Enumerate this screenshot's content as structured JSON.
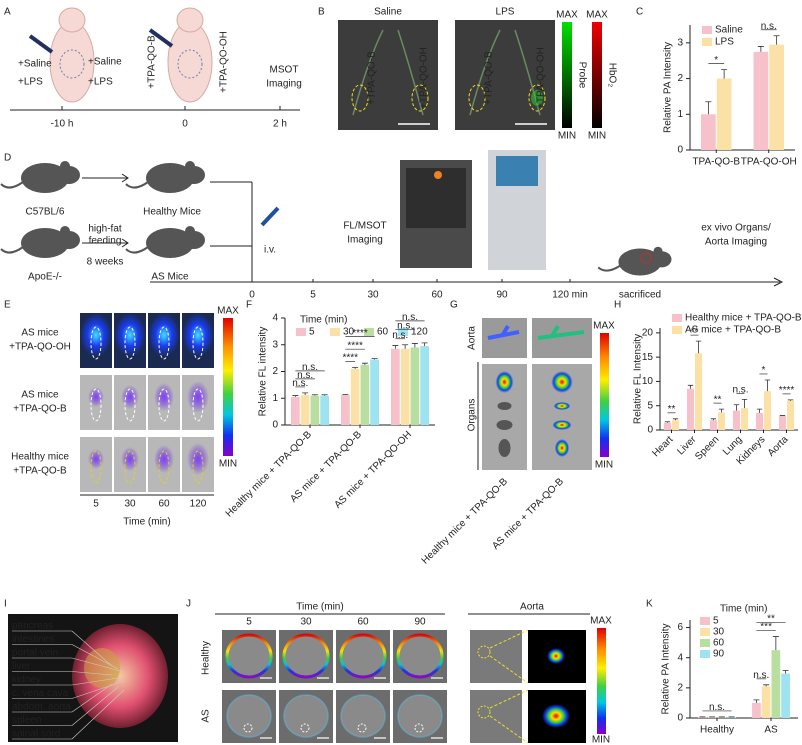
{
  "panel_labels": [
    "A",
    "B",
    "C",
    "D",
    "E",
    "F",
    "G",
    "H",
    "I",
    "J",
    "K"
  ],
  "panel_a": {
    "left_labels": [
      "+Saline",
      "+LPS",
      "+Saline",
      "+LPS"
    ],
    "probe_labels": [
      "+TPA-QO-B",
      "+TPA-QO-OH"
    ],
    "imaging": [
      "MSOT",
      "Imaging"
    ],
    "timeline": [
      "-10 h",
      "0",
      "2 h"
    ]
  },
  "panel_b": {
    "columns": [
      "Saline",
      "LPS"
    ],
    "probe_labels": [
      "+TPA-QO-B",
      "+TPA-QO-OH",
      "+TPA-QO-B",
      "+TPA-QO-OH"
    ],
    "colorbars": [
      {
        "max": "MAX",
        "min": "MIN",
        "label": "Probe"
      },
      {
        "max": "MAX",
        "min": "MIN",
        "label": "HbO₂"
      }
    ]
  },
  "panel_d": {
    "strains": [
      "C57BL/6",
      "ApoE-/-"
    ],
    "groups": [
      "Healthy Mice",
      "AS Mice"
    ],
    "diet": [
      "high-fat",
      "feeding",
      "8 weeks"
    ],
    "injection": "i.v.",
    "imaging": [
      "FL/MSOT",
      "Imaging"
    ],
    "timeline": [
      "0",
      "5",
      "30",
      "60",
      "90",
      "120 min",
      "sacrificed"
    ],
    "ex_vivo": [
      "ex vivo Organs/",
      "Aorta Imaging"
    ]
  },
  "panel_e": {
    "rows": [
      [
        "AS mice",
        "+TPA-QO-OH"
      ],
      [
        "AS mice",
        "+TPA-QO-B"
      ],
      [
        "Healthy mice",
        "+TPA-QO-B"
      ]
    ],
    "times": [
      "5",
      "30",
      "60",
      "120"
    ],
    "x_label": "Time (min)",
    "colorbar": {
      "max": "MAX",
      "min": "MIN"
    }
  },
  "panel_g": {
    "rows": [
      "Aorta",
      "Organs"
    ],
    "groups": [
      "Healthy mice + TPA-QO-B",
      "AS mice + TPA-QO-B"
    ],
    "colorbar": {
      "max": "MAX",
      "min": "MIN"
    }
  },
  "panel_i": {
    "labels": [
      "pancreas",
      "intestines",
      "portal vein",
      "liver",
      "kidney",
      "c. vena cava",
      "abdom. aorta",
      "spleen",
      "spinal sord"
    ]
  },
  "panel_j": {
    "time_label": "Time (min)",
    "times": [
      "5",
      "30",
      "60",
      "90"
    ],
    "rows": [
      "Healthy",
      "AS"
    ],
    "aorta_label": "Aorta",
    "colorbar": {
      "max": "MAX",
      "min": "MIN"
    }
  },
  "chart_data": [
    {
      "type": "bar",
      "y_label": "Relative PA Intensity",
      "categories": [
        "TPA-QO-B",
        "TPA-QO-OH"
      ],
      "series": [
        {
          "name": "Saline",
          "color": "#f7c1cb",
          "values": [
            1.0,
            2.75
          ],
          "errors": [
            0.35,
            0.15
          ]
        },
        {
          "name": "LPS",
          "color": "#fbe1a6",
          "values": [
            2.0,
            2.95
          ],
          "errors": [
            0.25,
            0.25
          ]
        }
      ],
      "ylim": [
        0,
        3.5
      ],
      "yticks": [
        0,
        1,
        2,
        3
      ],
      "annotations": [
        "*",
        "n.s."
      ]
    },
    {
      "type": "bar",
      "y_label": "Relative FL intensity",
      "legend_title": "Time (min)",
      "categories": [
        "Healthy mice + TPA-QO-B",
        "AS mice + TPA-QO-B",
        "AS mice + TPA-QO-OH"
      ],
      "series": [
        {
          "name": "5",
          "color": "#f7c1cb",
          "values": [
            1.05,
            1.12,
            2.85
          ],
          "errors": [
            0.05,
            0.02,
            0.12
          ]
        },
        {
          "name": "30",
          "color": "#fbe1a6",
          "values": [
            1.12,
            2.1,
            2.85
          ],
          "errors": [
            0.08,
            0.05,
            0.15
          ]
        },
        {
          "name": "60",
          "color": "#b9dfa0",
          "values": [
            1.1,
            2.25,
            2.9
          ],
          "errors": [
            0.03,
            0.06,
            0.15
          ]
        },
        {
          "name": "120",
          "color": "#9ee3f2",
          "values": [
            1.1,
            2.45,
            2.95
          ],
          "errors": [
            0.03,
            0.03,
            0.12
          ]
        }
      ],
      "ylim": [
        0,
        4
      ],
      "yticks": [
        0,
        1,
        2,
        3,
        4
      ],
      "annotations": [
        "n.s.",
        "n.s.",
        "n.s.",
        "****",
        "****",
        "****",
        "n.s.",
        "n.s.",
        "n.s."
      ]
    },
    {
      "type": "bar",
      "y_label": "Relative FL Intensity",
      "categories": [
        "Heart",
        "Liver",
        "Speen",
        "Lung",
        "Kidneys",
        "Aorta"
      ],
      "series": [
        {
          "name": "Healthy mice + TPA-QO-B",
          "color": "#f7c1cb",
          "values": [
            1.5,
            8.5,
            2.0,
            4.0,
            3.5,
            2.9
          ],
          "errors": [
            0.2,
            0.7,
            0.3,
            1.2,
            0.8,
            0.1
          ]
        },
        {
          "name": "AS mice + TPA-QO-B",
          "color": "#fbe1a6",
          "values": [
            2.0,
            15.8,
            3.6,
            4.5,
            8.0,
            6.0
          ],
          "errors": [
            0.3,
            2.5,
            0.7,
            1.8,
            2.3,
            0.2
          ]
        }
      ],
      "ylim": [
        0,
        21
      ],
      "yticks": [
        0,
        5,
        10,
        15,
        20
      ],
      "annotations": [
        "**",
        "**",
        "**",
        "n.s.",
        "*",
        "****"
      ]
    },
    {
      "type": "bar",
      "y_label": "Relative PA Intensity",
      "legend_title": "Time (min)",
      "categories": [
        "Healthy",
        "AS"
      ],
      "series": [
        {
          "name": "5",
          "color": "#f7c1cb",
          "values": [
            0.05,
            1.0
          ],
          "errors": [
            0.02,
            0.2
          ]
        },
        {
          "name": "30",
          "color": "#fbe1a6",
          "values": [
            0.05,
            2.1
          ],
          "errors": [
            0.02,
            0.1
          ]
        },
        {
          "name": "60",
          "color": "#b9dfa0",
          "values": [
            0.05,
            4.5
          ],
          "errors": [
            0.02,
            0.9
          ]
        },
        {
          "name": "90",
          "color": "#9ee3f2",
          "values": [
            0.05,
            2.95
          ],
          "errors": [
            0.02,
            0.2
          ]
        }
      ],
      "ylim": [
        0,
        6.5
      ],
      "yticks": [
        0,
        2,
        4,
        6
      ],
      "annotations": [
        "n.s.",
        "n.s.",
        "***",
        "**"
      ]
    }
  ]
}
